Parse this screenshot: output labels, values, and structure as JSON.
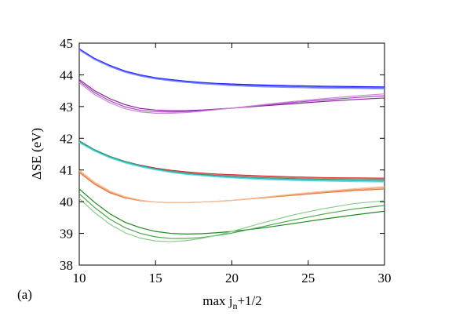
{
  "chart_data": {
    "type": "line",
    "panel_label": "(a)",
    "ylabel": "ΔSE (eV)",
    "xlabel": {
      "prefix": "max j",
      "subscript": "n",
      "suffix": "+1/2"
    },
    "xlim": [
      10,
      30
    ],
    "ylim": [
      38,
      45
    ],
    "xticks": [
      "10",
      "15",
      "20",
      "25",
      "30"
    ],
    "yticks": [
      "38",
      "39",
      "40",
      "41",
      "42",
      "43",
      "44",
      "45"
    ],
    "grid": false,
    "x": [
      10,
      11,
      12,
      13,
      14,
      15,
      16,
      17,
      18,
      19,
      20,
      22,
      24,
      26,
      28,
      30
    ],
    "series": [
      {
        "color": "#1a1aff",
        "values": [
          44.82,
          44.52,
          44.3,
          44.12,
          44.0,
          43.91,
          43.85,
          43.8,
          43.76,
          43.73,
          43.71,
          43.68,
          43.66,
          43.64,
          43.63,
          43.62
        ]
      },
      {
        "color": "#4f5cff",
        "values": [
          44.8,
          44.5,
          44.28,
          44.1,
          43.98,
          43.89,
          43.83,
          43.78,
          43.74,
          43.71,
          43.68,
          43.65,
          43.63,
          43.61,
          43.6,
          43.59
        ]
      },
      {
        "color": "#7f88ff",
        "values": [
          44.78,
          44.48,
          44.26,
          44.08,
          43.96,
          43.87,
          43.81,
          43.76,
          43.72,
          43.69,
          43.66,
          43.62,
          43.6,
          43.58,
          43.57,
          43.56
        ]
      },
      {
        "color": "#8a1f9e",
        "values": [
          43.85,
          43.5,
          43.25,
          43.06,
          42.94,
          42.89,
          42.87,
          42.87,
          42.89,
          42.92,
          42.95,
          43.02,
          43.09,
          43.16,
          43.22,
          43.27
        ]
      },
      {
        "color": "#a84dbd",
        "values": [
          43.8,
          43.44,
          43.18,
          42.99,
          42.88,
          42.84,
          42.83,
          42.84,
          42.87,
          42.91,
          42.95,
          43.04,
          43.13,
          43.21,
          43.28,
          43.34
        ]
      },
      {
        "color": "#c88ad6",
        "values": [
          43.75,
          43.38,
          43.12,
          42.93,
          42.83,
          42.79,
          42.79,
          42.81,
          42.85,
          42.9,
          42.95,
          43.06,
          43.16,
          43.25,
          43.33,
          43.4
        ]
      },
      {
        "color": "#d62020",
        "values": [
          41.9,
          41.63,
          41.42,
          41.27,
          41.15,
          41.06,
          40.99,
          40.94,
          40.9,
          40.87,
          40.85,
          40.81,
          40.78,
          40.76,
          40.75,
          40.74
        ]
      },
      {
        "color": "#e86a6a",
        "values": [
          41.89,
          41.62,
          41.41,
          41.25,
          41.13,
          41.04,
          40.97,
          40.92,
          40.88,
          40.85,
          40.83,
          40.79,
          40.76,
          40.74,
          40.73,
          40.72
        ]
      },
      {
        "color": "#3a9a6a",
        "values": [
          41.92,
          41.64,
          41.43,
          41.27,
          41.14,
          41.04,
          40.96,
          40.9,
          40.86,
          40.83,
          40.8,
          40.76,
          40.73,
          40.71,
          40.7,
          40.69
        ]
      },
      {
        "color": "#20b8c8",
        "values": [
          41.88,
          41.61,
          41.4,
          41.24,
          41.12,
          41.02,
          40.94,
          40.88,
          40.84,
          40.8,
          40.77,
          40.73,
          40.7,
          40.68,
          40.66,
          40.65
        ]
      },
      {
        "color": "#6ad8e0",
        "values": [
          41.86,
          41.59,
          41.38,
          41.22,
          41.1,
          41.0,
          40.92,
          40.86,
          40.82,
          40.78,
          40.75,
          40.7,
          40.67,
          40.65,
          40.63,
          40.62
        ]
      },
      {
        "color": "#e8733a",
        "values": [
          40.92,
          40.55,
          40.28,
          40.12,
          40.03,
          39.99,
          39.97,
          39.97,
          39.99,
          40.01,
          40.04,
          40.12,
          40.2,
          40.28,
          40.35,
          40.4
        ]
      },
      {
        "color": "#f09a6a",
        "values": [
          40.96,
          40.58,
          40.31,
          40.14,
          40.04,
          39.99,
          39.97,
          39.97,
          39.99,
          40.01,
          40.04,
          40.13,
          40.22,
          40.3,
          40.38,
          40.44
        ]
      },
      {
        "color": "#f8c09a",
        "values": [
          41.0,
          40.62,
          40.34,
          40.16,
          40.05,
          39.99,
          39.97,
          39.97,
          39.99,
          40.01,
          40.04,
          40.14,
          40.24,
          40.33,
          40.41,
          40.48
        ]
      },
      {
        "color": "#1f8a1f",
        "values": [
          40.4,
          39.98,
          39.62,
          39.35,
          39.18,
          39.06,
          39.0,
          38.98,
          38.99,
          39.02,
          39.06,
          39.17,
          39.31,
          39.45,
          39.58,
          39.7
        ]
      },
      {
        "color": "#4aa84a",
        "values": [
          40.25,
          39.82,
          39.45,
          39.18,
          39.0,
          38.89,
          38.84,
          38.84,
          38.87,
          38.93,
          39.01,
          39.21,
          39.42,
          39.61,
          39.77,
          39.88
        ]
      },
      {
        "color": "#88cc88",
        "values": [
          40.1,
          39.66,
          39.29,
          39.02,
          38.85,
          38.76,
          38.74,
          38.77,
          38.84,
          38.94,
          39.06,
          39.33,
          39.58,
          39.78,
          39.94,
          40.03
        ]
      }
    ]
  }
}
